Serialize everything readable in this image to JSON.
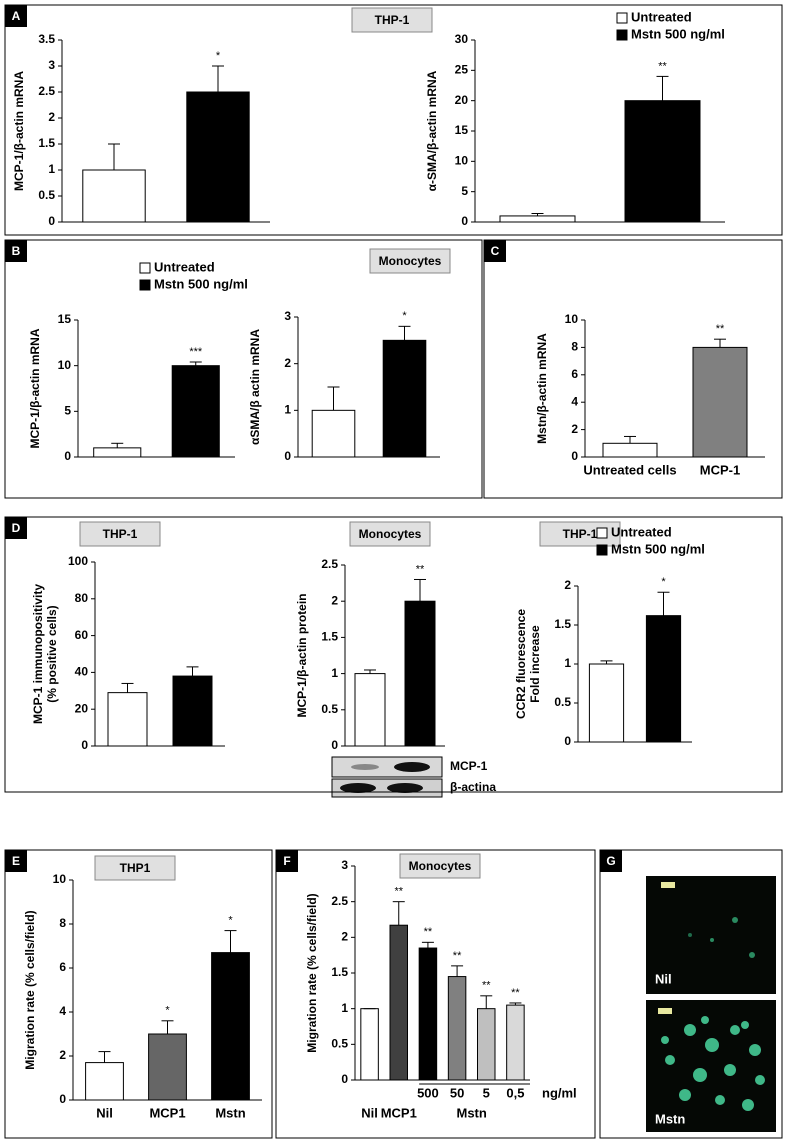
{
  "chart_data": [
    {
      "type": "bar",
      "ylabel": "MCP-1/β-actin mRNA",
      "values": [
        1,
        2.5
      ],
      "errors": [
        0.5,
        0.5
      ],
      "colors": [
        "#ffffff",
        "#000000"
      ],
      "annotations": [
        null,
        "*"
      ],
      "ylim": [
        0,
        3.5
      ],
      "yticks": [
        0,
        0.5,
        1,
        1.5,
        2,
        2.5,
        3,
        3.5
      ]
    },
    {
      "type": "bar",
      "ylabel": "α-SMA/β-actin mRNA",
      "values": [
        1,
        20
      ],
      "errors": [
        0.4,
        4
      ],
      "colors": [
        "#ffffff",
        "#000000"
      ],
      "annotations": [
        null,
        "**"
      ],
      "ylim": [
        0,
        30
      ],
      "yticks": [
        0,
        5,
        10,
        15,
        20,
        25,
        30
      ]
    },
    {
      "type": "bar",
      "ylabel": "MCP-1/β-actin mRNA",
      "values": [
        1,
        10
      ],
      "errors": [
        0.5,
        0.4
      ],
      "colors": [
        "#ffffff",
        "#000000"
      ],
      "annotations": [
        null,
        "***"
      ],
      "ylim": [
        0,
        15
      ],
      "yticks": [
        0,
        5,
        10,
        15
      ]
    },
    {
      "type": "bar",
      "ylabel": "αSMA/β actin  mRNA",
      "values": [
        1,
        2.5
      ],
      "errors": [
        0.5,
        0.3
      ],
      "colors": [
        "#ffffff",
        "#000000"
      ],
      "annotations": [
        null,
        "*"
      ],
      "ylim": [
        0,
        3
      ],
      "yticks": [
        0,
        1,
        2,
        3
      ]
    },
    {
      "type": "bar",
      "ylabel": "Mstn/β-actin mRNA",
      "categories": [
        "Untreated cells",
        "MCP-1"
      ],
      "values": [
        1,
        8
      ],
      "errors": [
        0.5,
        0.6
      ],
      "colors": [
        "#ffffff",
        "#808080"
      ],
      "annotations": [
        null,
        "**"
      ],
      "ylim": [
        0,
        10
      ],
      "yticks": [
        0,
        2,
        4,
        6,
        8,
        10
      ]
    },
    {
      "type": "bar",
      "ylabel": [
        "MCP-1 immunopositivity",
        "(%  positive cells)"
      ],
      "values": [
        29,
        38
      ],
      "errors": [
        5,
        5
      ],
      "colors": [
        "#ffffff",
        "#000000"
      ],
      "annotations": [
        null,
        null
      ],
      "ylim": [
        0,
        100
      ],
      "yticks": [
        0,
        20,
        40,
        60,
        80,
        100
      ]
    },
    {
      "type": "bar",
      "ylabel": "MCP-1/β-actin protein",
      "values": [
        1,
        2
      ],
      "errors": [
        0.05,
        0.3
      ],
      "colors": [
        "#ffffff",
        "#000000"
      ],
      "annotations": [
        null,
        "**"
      ],
      "ylim": [
        0,
        2.5
      ],
      "yticks": [
        0,
        0.5,
        1,
        1.5,
        2,
        2.5
      ]
    },
    {
      "type": "bar",
      "ylabel": [
        "CCR2  fluorescence",
        "Fold increase"
      ],
      "values": [
        1,
        1.62
      ],
      "errors": [
        0.04,
        0.3
      ],
      "colors": [
        "#ffffff",
        "#000000"
      ],
      "annotations": [
        null,
        "*"
      ],
      "ylim": [
        0,
        2
      ],
      "yticks": [
        0,
        0.5,
        1,
        1.5,
        2
      ]
    },
    {
      "type": "bar",
      "ylabel": "Migration rate (% cells/field)",
      "categories": [
        "Nil",
        "MCP1",
        "Mstn"
      ],
      "values": [
        1.7,
        3,
        6.7
      ],
      "errors": [
        0.5,
        0.6,
        1.0
      ],
      "colors": [
        "#ffffff",
        "#666666",
        "#000000"
      ],
      "annotations": [
        null,
        "*",
        "*"
      ],
      "ylim": [
        0,
        10
      ],
      "yticks": [
        0,
        2,
        4,
        6,
        8,
        10
      ]
    },
    {
      "type": "bar",
      "ylabel": "Migration rate (% cells/field)",
      "categories": [
        "Nil",
        "MCP1",
        "500",
        "50",
        "5",
        "0,5"
      ],
      "values": [
        1,
        2.17,
        1.85,
        1.45,
        1.0,
        1.05
      ],
      "errors": [
        0,
        0.33,
        0.08,
        0.15,
        0.18,
        0.03
      ],
      "colors": [
        "#ffffff",
        "#404040",
        "#000000",
        "#808080",
        "#bfbfbf",
        "#d9d9d9"
      ],
      "annotations": [
        null,
        "**",
        "**",
        "**",
        "**",
        "**"
      ],
      "unit_label": "ng/ml",
      "group_label": "Mstn",
      "ylim": [
        0,
        3
      ],
      "yticks": [
        0,
        0.5,
        1,
        1.5,
        2,
        2.5,
        3
      ]
    }
  ],
  "panels": [
    {
      "label": "A",
      "titles": [
        "THP-1"
      ],
      "legend": [
        {
          "name": "Untreated",
          "color": "#ffffff"
        },
        {
          "name": "Mstn  500 ng/ml",
          "color": "#000000"
        }
      ]
    },
    {
      "label": "B",
      "titles": [
        "Monocytes"
      ],
      "legend": [
        {
          "name": "Untreated",
          "color": "#ffffff"
        },
        {
          "name": "Mstn  500 ng/ml",
          "color": "#000000"
        }
      ]
    },
    {
      "label": "C"
    },
    {
      "label": "D",
      "titles": [
        "THP-1",
        "Monocytes",
        "THP-1"
      ],
      "legend": [
        {
          "name": "Untreated",
          "color": "#ffffff"
        },
        {
          "name": "Mstn  500 ng/ml",
          "color": "#000000"
        }
      ],
      "blot_labels": [
        "MCP-1",
        "β-actina"
      ]
    },
    {
      "label": "E",
      "titles": [
        "THP1"
      ]
    },
    {
      "label": "F",
      "titles": [
        "Monocytes"
      ]
    },
    {
      "label": "G",
      "image_labels": [
        "Nil",
        "Mstn"
      ]
    }
  ]
}
